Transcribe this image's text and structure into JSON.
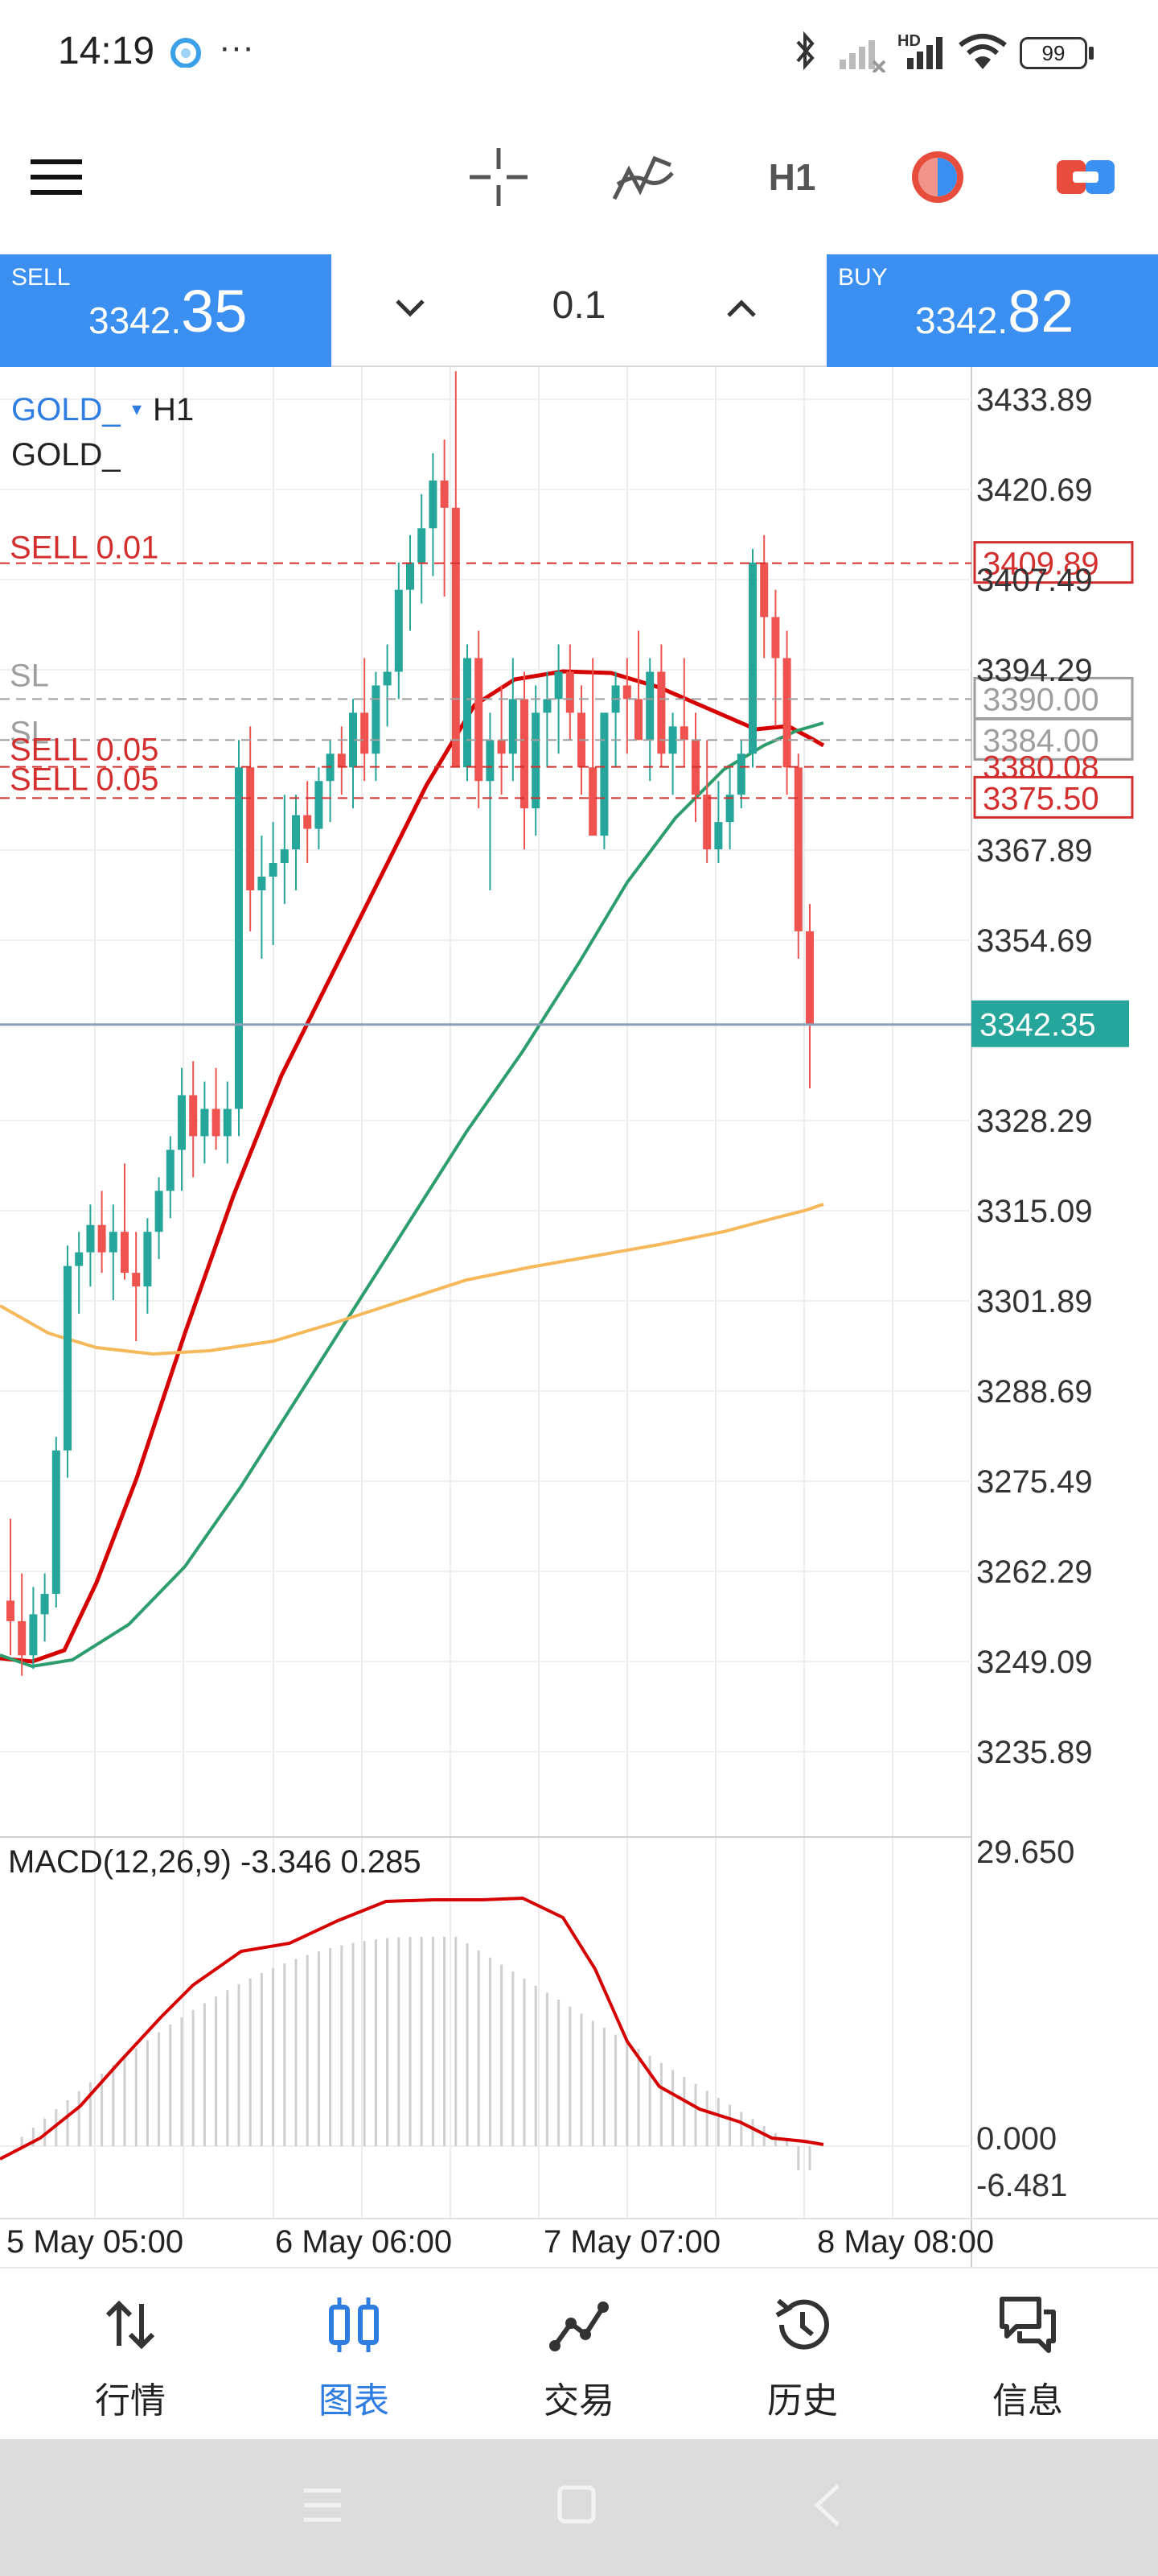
{
  "status_bar": {
    "time": "14:19",
    "more": "···",
    "network_label": "HD",
    "battery": "99"
  },
  "toolbar": {
    "timeframe": "H1"
  },
  "trade_bar": {
    "sell_label": "SELL",
    "sell_price_small": "3342.",
    "sell_price_big": "35",
    "lot": "0.1",
    "buy_label": "BUY",
    "buy_price_small": "3342.",
    "buy_price_big": "82"
  },
  "chart": {
    "symbol": "GOLD_",
    "timeframe": "H1",
    "symbol_line2": "GOLD_",
    "price_levels": [
      "3433.89",
      "3420.69",
      "3407.49",
      "3394.29",
      "3367.89",
      "3354.69",
      "3328.29",
      "3315.09",
      "3301.89",
      "3288.69",
      "3275.49",
      "3262.29",
      "3249.09",
      "3235.89"
    ],
    "order_lines": [
      {
        "label": "SELL 0.01",
        "price": "3409.89",
        "color": "#d32f2f"
      },
      {
        "label": "SL",
        "price": "3390.00",
        "color": "#9e9e9e"
      },
      {
        "label": "SL",
        "price": "3384.00",
        "color": "#9e9e9e"
      },
      {
        "label": "SELL 0.05",
        "price": "3380.08",
        "color": "#d32f2f"
      },
      {
        "label": "SELL 0.05",
        "price": "3375.50",
        "color": "#d32f2f"
      }
    ],
    "current_price": "3342.35",
    "macd_label": "MACD(12,26,9) -3.346 0.285",
    "macd_levels": [
      "29.650",
      "0.000",
      "-6.481"
    ],
    "time_labels": [
      "5 May 05:00",
      "6 May 06:00",
      "7 May 07:00",
      "8 May 08:00"
    ],
    "colors": {
      "bull": "#26a69a",
      "bear": "#ef5350",
      "ma_fast": "#d50000",
      "ma_mid": "#2e9d6e",
      "ma_slow": "#f5b85a",
      "bid_tag": "#26a69a"
    }
  },
  "bottom_nav": {
    "items": [
      {
        "label": "行情",
        "icon": "quotes-icon"
      },
      {
        "label": "图表",
        "icon": "chart-icon"
      },
      {
        "label": "交易",
        "icon": "trade-icon"
      },
      {
        "label": "历史",
        "icon": "history-icon"
      },
      {
        "label": "信息",
        "icon": "messages-icon"
      }
    ]
  }
}
